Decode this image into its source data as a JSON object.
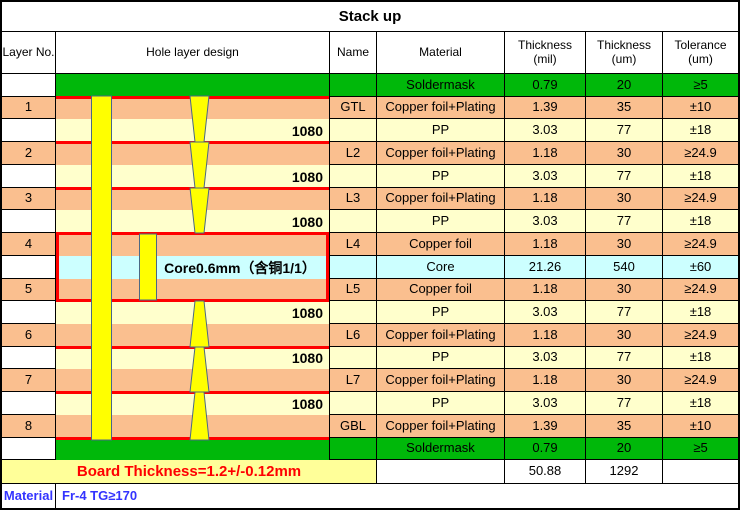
{
  "title": "Stack up",
  "header": {
    "columns": [
      "Layer No.",
      "Hole layer design",
      "Name",
      "Material",
      "Thickness\n(mil)",
      "Thickness\n(um)",
      "Tolerance\n(um)"
    ]
  },
  "design": {
    "pp_label": "1080",
    "core_label": "Core0.6mm（含铜1/1）"
  },
  "rows": [
    {
      "type": "sm",
      "layer": "",
      "name": "",
      "material": "Soldermask",
      "mil": "0.79",
      "um": "20",
      "tol": "≥5"
    },
    {
      "type": "cu",
      "layer": "1",
      "name": "GTL",
      "material": "Copper foil+Plating",
      "mil": "1.39",
      "um": "35",
      "tol": "±10"
    },
    {
      "type": "pp",
      "layer": "",
      "name": "",
      "material": "PP",
      "mil": "3.03",
      "um": "77",
      "tol": "±18"
    },
    {
      "type": "cu",
      "layer": "2",
      "name": "L2",
      "material": "Copper foil+Plating",
      "mil": "1.18",
      "um": "30",
      "tol": "≥24.9"
    },
    {
      "type": "pp",
      "layer": "",
      "name": "",
      "material": "PP",
      "mil": "3.03",
      "um": "77",
      "tol": "±18"
    },
    {
      "type": "cu",
      "layer": "3",
      "name": "L3",
      "material": "Copper foil+Plating",
      "mil": "1.18",
      "um": "30",
      "tol": "≥24.9"
    },
    {
      "type": "pp",
      "layer": "",
      "name": "",
      "material": "PP",
      "mil": "3.03",
      "um": "77",
      "tol": "±18"
    },
    {
      "type": "cu",
      "layer": "4",
      "name": "L4",
      "material": "Copper foil",
      "mil": "1.18",
      "um": "30",
      "tol": "≥24.9"
    },
    {
      "type": "core",
      "layer": "",
      "name": "",
      "material": "Core",
      "mil": "21.26",
      "um": "540",
      "tol": "±60"
    },
    {
      "type": "cu",
      "layer": "5",
      "name": "L5",
      "material": "Copper foil",
      "mil": "1.18",
      "um": "30",
      "tol": "≥24.9"
    },
    {
      "type": "pp",
      "layer": "",
      "name": "",
      "material": "PP",
      "mil": "3.03",
      "um": "77",
      "tol": "±18"
    },
    {
      "type": "cu",
      "layer": "6",
      "name": "L6",
      "material": "Copper foil+Plating",
      "mil": "1.18",
      "um": "30",
      "tol": "≥24.9"
    },
    {
      "type": "pp",
      "layer": "",
      "name": "",
      "material": "PP",
      "mil": "3.03",
      "um": "77",
      "tol": "±18"
    },
    {
      "type": "cu",
      "layer": "7",
      "name": "L7",
      "material": "Copper foil+Plating",
      "mil": "1.18",
      "um": "30",
      "tol": "≥24.9"
    },
    {
      "type": "pp",
      "layer": "",
      "name": "",
      "material": "PP",
      "mil": "3.03",
      "um": "77",
      "tol": "±18"
    },
    {
      "type": "cu",
      "layer": "8",
      "name": "GBL",
      "material": "Copper foil+Plating",
      "mil": "1.39",
      "um": "35",
      "tol": "±10"
    },
    {
      "type": "sm",
      "layer": "",
      "name": "",
      "material": "Soldermask",
      "mil": "0.79",
      "um": "20",
      "tol": "≥5"
    }
  ],
  "totals": {
    "label": "Board Thickness=1.2+/-0.12mm",
    "mil": "50.88",
    "um": "1292"
  },
  "footer": {
    "label": "Material",
    "value": "Fr-4 TG≥170"
  },
  "colors": {
    "copper": "#FABF8F",
    "prepreg": "#FFFFCC",
    "core": "#CCFFFF",
    "soldermask": "#00B80A",
    "via_fill": "#FFFF00",
    "via_outline": "#4A6885",
    "accent_red": "#FF0000",
    "totals_bg": "#FFFF99",
    "footer_blue": "#3333FF"
  }
}
